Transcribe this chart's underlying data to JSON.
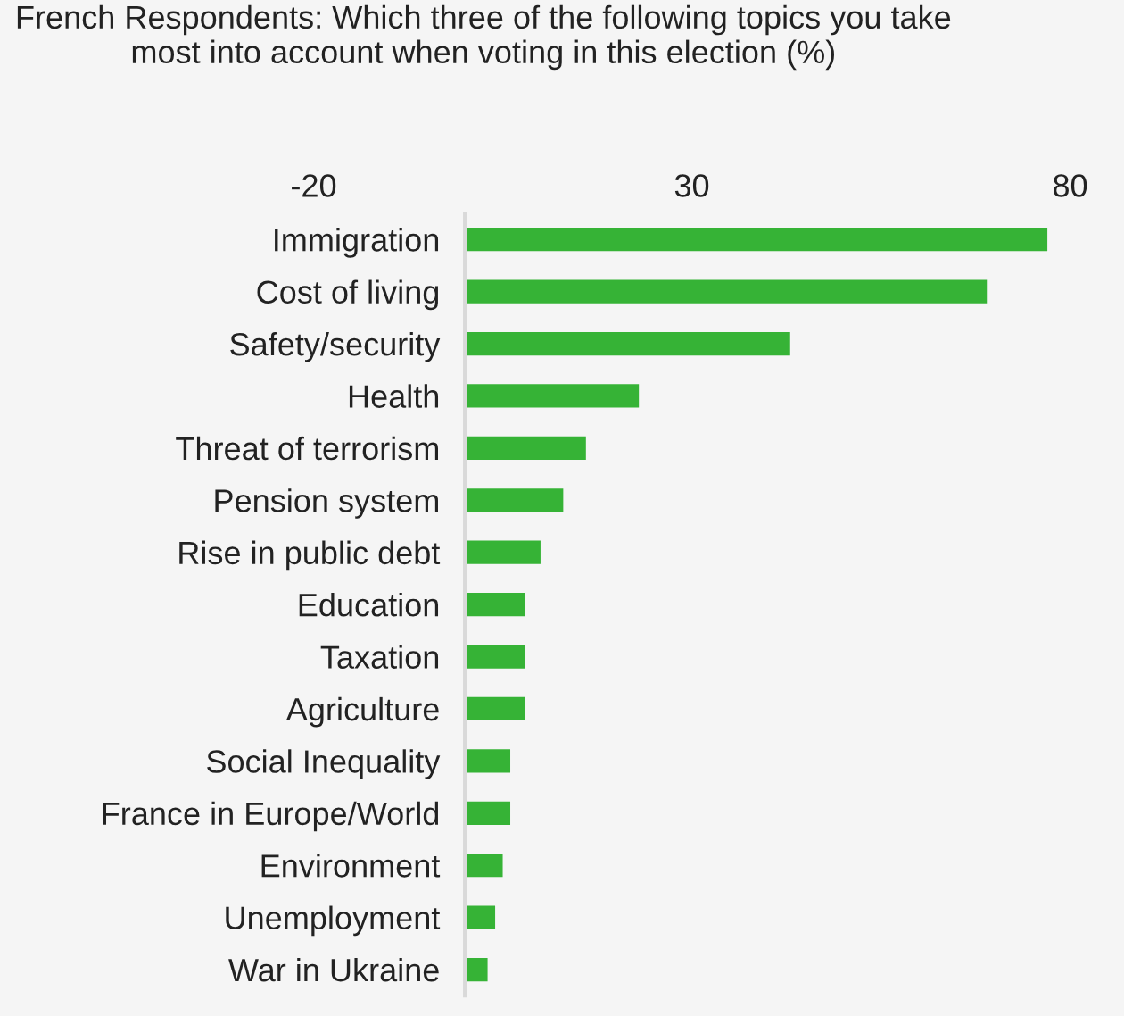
{
  "chart_data": {
    "type": "bar",
    "orientation": "horizontal",
    "title": "French Respondents: Which three of the following topics you take most into account when voting in this election (%)",
    "categories": [
      "Immigration",
      "Cost of living",
      "Safety/security",
      "Health",
      "Threat of terrorism",
      "Pension system",
      "Rise in public debt",
      "Education",
      "Taxation",
      "Agriculture",
      "Social Inequality",
      "France in Europe/World",
      "Environment",
      "Unemployment",
      "War in Ukraine"
    ],
    "values": [
      77,
      69,
      43,
      23,
      16,
      13,
      10,
      8,
      8,
      8,
      6,
      6,
      5,
      4,
      3
    ],
    "color": "#36b336",
    "xlim": [
      -20,
      80
    ],
    "xticks": [
      -20,
      30,
      80
    ],
    "grid": false,
    "legend": false
  }
}
